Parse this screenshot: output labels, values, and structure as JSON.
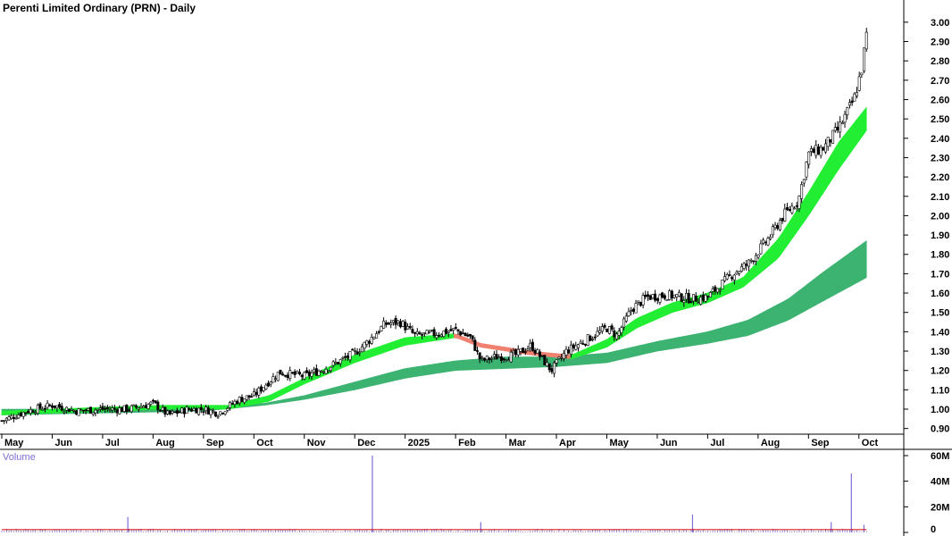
{
  "chart_data": {
    "type": "candlestick",
    "title": "Perenti Limited Ordinary (PRN) - Daily",
    "price_axis": {
      "ticks": [
        "3.00",
        "2.90",
        "2.80",
        "2.70",
        "2.60",
        "2.50",
        "2.40",
        "2.30",
        "2.20",
        "2.10",
        "2.00",
        "1.90",
        "1.80",
        "1.70",
        "1.60",
        "1.50",
        "1.40",
        "1.30",
        "1.20",
        "1.10",
        "1.00",
        "0.90"
      ],
      "ylim": [
        0.88,
        3.05
      ]
    },
    "volume_axis": {
      "label": "Volume",
      "ticks": [
        "60M",
        "40M",
        "20M",
        "0"
      ],
      "ylim": [
        0,
        60
      ]
    },
    "x_labels": [
      "May",
      "Jun",
      "Jul",
      "Aug",
      "Sep",
      "Oct",
      "Nov",
      "Dec",
      "2025",
      "Feb",
      "Mar",
      "Apr",
      "May",
      "Jun",
      "Jul",
      "Aug",
      "Sep",
      "Oct"
    ],
    "x_range_months": [
      0,
      17.5
    ],
    "price_path": [
      [
        0,
        0.94
      ],
      [
        0.5,
        0.99
      ],
      [
        1,
        1.02
      ],
      [
        1.5,
        0.99
      ],
      [
        2,
        1.0
      ],
      [
        2.5,
        1.0
      ],
      [
        3,
        1.03
      ],
      [
        3.3,
        0.97
      ],
      [
        3.7,
        1.0
      ],
      [
        4,
        1.0
      ],
      [
        4.3,
        0.98
      ],
      [
        4.7,
        1.05
      ],
      [
        5,
        1.07
      ],
      [
        5.2,
        1.12
      ],
      [
        5.5,
        1.19
      ],
      [
        6,
        1.17
      ],
      [
        6.5,
        1.22
      ],
      [
        7,
        1.29
      ],
      [
        7.3,
        1.36
      ],
      [
        7.6,
        1.44
      ],
      [
        7.9,
        1.45
      ],
      [
        8.2,
        1.38
      ],
      [
        8.6,
        1.39
      ],
      [
        9,
        1.41
      ],
      [
        9.3,
        1.37
      ],
      [
        9.5,
        1.25
      ],
      [
        9.8,
        1.27
      ],
      [
        10.2,
        1.28
      ],
      [
        10.5,
        1.33
      ],
      [
        10.9,
        1.2
      ],
      [
        11.2,
        1.3
      ],
      [
        11.6,
        1.36
      ],
      [
        12,
        1.42
      ],
      [
        12.2,
        1.38
      ],
      [
        12.5,
        1.52
      ],
      [
        12.8,
        1.58
      ],
      [
        13.2,
        1.59
      ],
      [
        13.7,
        1.57
      ],
      [
        14,
        1.58
      ],
      [
        14.5,
        1.7
      ],
      [
        14.8,
        1.75
      ],
      [
        15.2,
        1.88
      ],
      [
        15.5,
        2.0
      ],
      [
        15.8,
        2.08
      ],
      [
        16,
        2.32
      ],
      [
        16.3,
        2.35
      ],
      [
        16.6,
        2.45
      ],
      [
        16.9,
        2.6
      ],
      [
        17.05,
        2.75
      ],
      [
        17.15,
        2.93
      ]
    ],
    "fast_ma_band": [
      [
        0,
        0.97,
        0.99
      ],
      [
        2,
        0.99,
        1.01
      ],
      [
        3.2,
        1.0,
        1.02
      ],
      [
        4.5,
        1.0,
        1.02
      ],
      [
        5.3,
        1.04,
        1.07
      ],
      [
        6,
        1.13,
        1.16
      ],
      [
        7,
        1.24,
        1.28
      ],
      [
        8,
        1.33,
        1.37
      ],
      [
        9,
        1.37,
        1.39
      ],
      [
        9.5,
        1.32,
        1.34
      ],
      [
        10.5,
        1.28,
        1.3
      ],
      [
        11.3,
        1.26,
        1.28
      ],
      [
        12,
        1.32,
        1.36
      ],
      [
        12.6,
        1.42,
        1.47
      ],
      [
        13.3,
        1.5,
        1.55
      ],
      [
        14,
        1.55,
        1.6
      ],
      [
        14.7,
        1.63,
        1.68
      ],
      [
        15.4,
        1.78,
        1.88
      ],
      [
        16,
        2.0,
        2.12
      ],
      [
        16.6,
        2.24,
        2.38
      ],
      [
        17.15,
        2.44,
        2.56
      ]
    ],
    "slow_ma_band": [
      [
        0,
        0.97,
        1.0
      ],
      [
        2,
        0.98,
        1.0
      ],
      [
        4,
        0.99,
        1.01
      ],
      [
        5.2,
        1.02,
        1.03
      ],
      [
        6,
        1.05,
        1.07
      ],
      [
        7,
        1.1,
        1.14
      ],
      [
        8,
        1.16,
        1.21
      ],
      [
        9,
        1.2,
        1.25
      ],
      [
        10,
        1.21,
        1.27
      ],
      [
        11,
        1.22,
        1.27
      ],
      [
        12,
        1.24,
        1.29
      ],
      [
        13,
        1.3,
        1.35
      ],
      [
        14,
        1.34,
        1.4
      ],
      [
        14.8,
        1.38,
        1.46
      ],
      [
        15.6,
        1.46,
        1.57
      ],
      [
        16.3,
        1.56,
        1.71
      ],
      [
        17.15,
        1.68,
        1.87
      ]
    ],
    "volume_spikes": [
      {
        "x": 2.5,
        "value": 12
      },
      {
        "x": 7.35,
        "value": 60
      },
      {
        "x": 9.5,
        "value": 8
      },
      {
        "x": 13.7,
        "value": 14
      },
      {
        "x": 16.45,
        "value": 8
      },
      {
        "x": 16.85,
        "value": 46
      },
      {
        "x": 17.1,
        "value": 6
      }
    ],
    "colors": {
      "candle": "#000000",
      "fast_band_up": "#22ee33",
      "fast_band_down": "#f08070",
      "slow_band_up": "#3cb371",
      "slow_band_down": "#e8602c",
      "volume": "#7b6fd6",
      "volume_ma": "#cc0000",
      "grid": "#bbbbbb"
    }
  }
}
